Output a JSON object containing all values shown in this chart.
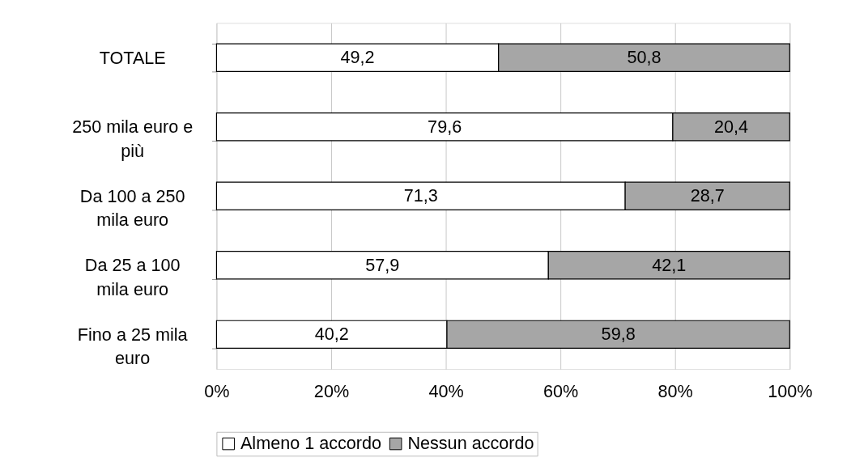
{
  "chart_data": {
    "type": "bar",
    "orientation": "horizontal",
    "stacked": true,
    "categories": [
      "TOTALE",
      "250 mila euro e più",
      "Da 100 a 250 mila euro",
      "Da 25 a 100 mila euro",
      "Fino a 25 mila euro"
    ],
    "series": [
      {
        "name": "Almeno 1 accordo",
        "color": "#ffffff",
        "values": [
          49.2,
          79.6,
          71.3,
          57.9,
          40.2
        ],
        "value_labels": [
          "49,2",
          "79,6",
          "71,3",
          "57,9",
          "40,2"
        ]
      },
      {
        "name": "Nessun accordo",
        "color": "#a6a6a6",
        "values": [
          50.8,
          20.4,
          28.7,
          42.1,
          59.8
        ],
        "value_labels": [
          "50,8",
          "20,4",
          "28,7",
          "42,1",
          "59,8"
        ]
      }
    ],
    "xlim": [
      0,
      100
    ],
    "xticks": [
      {
        "value": 0,
        "label": "0%"
      },
      {
        "value": 20,
        "label": "20%"
      },
      {
        "value": 40,
        "label": "40%"
      },
      {
        "value": 60,
        "label": "60%"
      },
      {
        "value": 80,
        "label": "80%"
      },
      {
        "value": 100,
        "label": "100%"
      }
    ],
    "grid": "x",
    "legend": "bottom"
  }
}
